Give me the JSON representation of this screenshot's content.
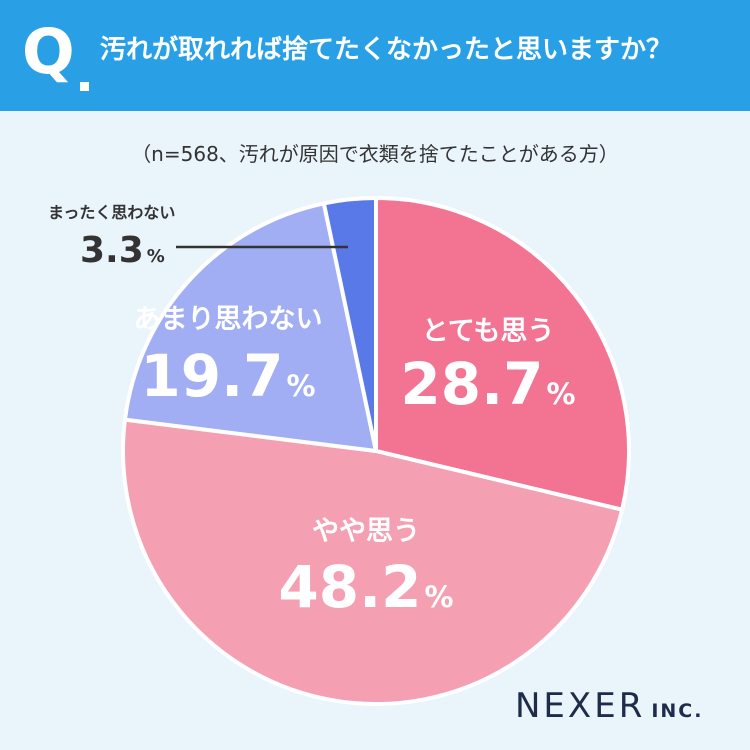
{
  "header": {
    "q_letter": "Q",
    "question": "汚れが取れれば捨てたくなかったと思いますか？"
  },
  "note": "（n=568、汚れが原因で衣類を捨てたことがある方）",
  "logo": {
    "name": "NEXER",
    "suffix": "INC."
  },
  "percent_sign": "%",
  "chart_data": {
    "type": "pie",
    "unit": "%",
    "slices": [
      {
        "label": "とても思う",
        "value": 28.7,
        "display": "28.7",
        "color": "#f37392"
      },
      {
        "label": "やや思う",
        "value": 48.2,
        "display": "48.2",
        "color": "#f59fb2"
      },
      {
        "label": "あまり思わない",
        "value": 19.7,
        "display": "19.7",
        "color": "#a1aef3"
      },
      {
        "label": "まったく思わない",
        "value": 3.3,
        "display": "3.3",
        "color": "#5a79e8"
      }
    ]
  }
}
